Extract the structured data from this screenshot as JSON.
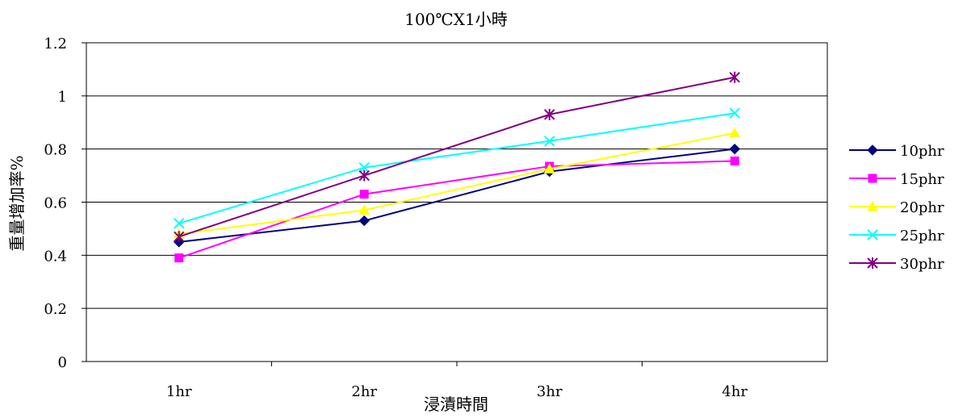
{
  "chart_data": {
    "type": "line",
    "title": "100℃X1小時",
    "xlabel": "浸漬時間",
    "ylabel": "重量增加率%",
    "categories": [
      "1hr",
      "2hr",
      "3hr",
      "4hr"
    ],
    "ylim": [
      0,
      1.2
    ],
    "yticks": [
      "0",
      "0.2",
      "0.4",
      "0.6",
      "0.8",
      "1",
      "1.2"
    ],
    "grid": true,
    "legend": "right",
    "series": [
      {
        "name": "10phr",
        "values": [
          0.45,
          0.53,
          0.715,
          0.8
        ],
        "color": "#000080",
        "marker": "diamond"
      },
      {
        "name": "15phr",
        "values": [
          0.39,
          0.63,
          0.735,
          0.755
        ],
        "color": "#ff00ff",
        "marker": "square"
      },
      {
        "name": "20phr",
        "values": [
          0.48,
          0.57,
          0.725,
          0.86
        ],
        "color": "#ffff00",
        "marker": "triangle"
      },
      {
        "name": "25phr",
        "values": [
          0.52,
          0.73,
          0.83,
          0.935
        ],
        "color": "#00ffff",
        "marker": "x"
      },
      {
        "name": "30phr",
        "values": [
          0.47,
          0.7,
          0.93,
          1.07
        ],
        "color": "#800080",
        "marker": "star"
      }
    ]
  }
}
